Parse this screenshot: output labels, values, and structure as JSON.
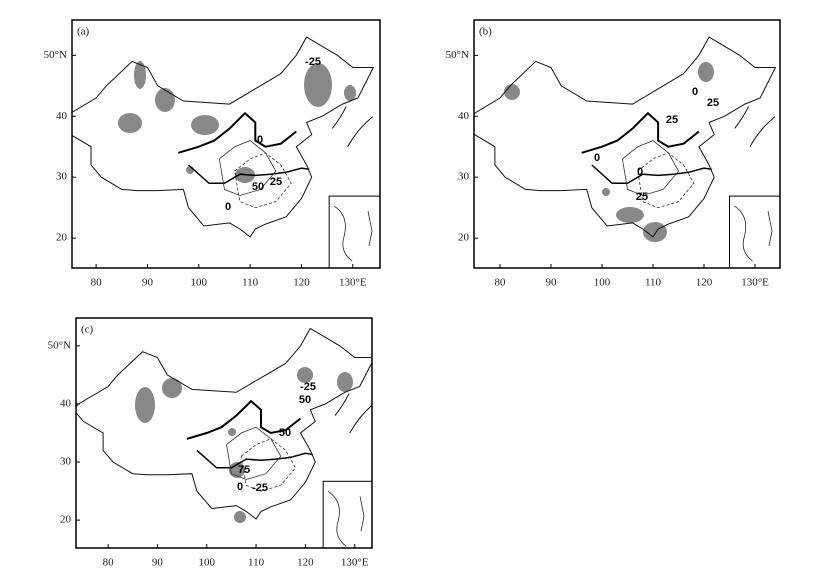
{
  "panels": [
    {
      "label": "(a)",
      "lon_ticks": [
        "80",
        "90",
        "100",
        "110",
        "120",
        "130°E"
      ],
      "lat_ticks": [
        "20",
        "30",
        "40",
        "50°N"
      ],
      "contour_labels": [
        "-25",
        "0",
        "50",
        "25",
        "0"
      ]
    },
    {
      "label": "(b)",
      "lon_ticks": [
        "80",
        "90",
        "100",
        "110",
        "120",
        "130°E"
      ],
      "lat_ticks": [
        "20",
        "30",
        "40",
        "50°N"
      ],
      "contour_labels": [
        "0",
        "25",
        "25",
        "0",
        "0",
        "25"
      ]
    },
    {
      "label": "(c)",
      "lon_ticks": [
        "80",
        "90",
        "100",
        "110",
        "120",
        "130°E"
      ],
      "lat_ticks": [
        "20",
        "30",
        "40",
        "50°N"
      ],
      "contour_labels": [
        "-25",
        "50",
        "50",
        "75",
        "0",
        "-25"
      ]
    }
  ]
}
